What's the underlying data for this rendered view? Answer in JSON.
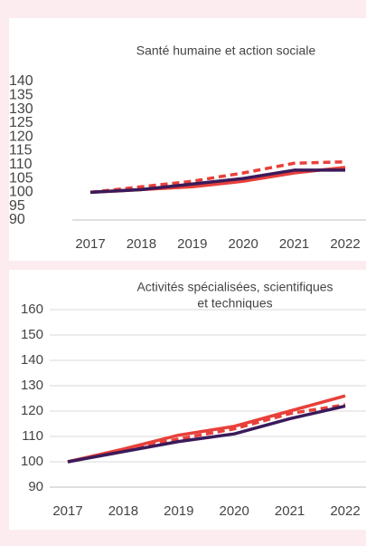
{
  "chart_data": [
    {
      "type": "line",
      "title": "Santé humaine et action sociale",
      "categories": [
        "2017",
        "2018",
        "2019",
        "2020",
        "2021",
        "2022"
      ],
      "series": [
        {
          "color": "#e8403a",
          "dash": false,
          "values": [
            100,
            101,
            102,
            104,
            107,
            109
          ]
        },
        {
          "color": "#e8403a",
          "dash": true,
          "values": [
            100,
            102,
            104,
            107,
            110.5,
            111
          ]
        },
        {
          "color": "#3b1a5a",
          "dash": false,
          "values": [
            100,
            101,
            103,
            105,
            108,
            108
          ]
        }
      ],
      "ylim": [
        90,
        140
      ],
      "yticks": [
        90,
        95,
        100,
        105,
        110,
        115,
        120,
        125,
        130,
        135,
        140
      ],
      "grid": false
    },
    {
      "type": "line",
      "title": [
        "Activités spécialisées, scientifiques",
        "et techniques"
      ],
      "categories": [
        "2017",
        "2018",
        "2019",
        "2020",
        "2021",
        "2022"
      ],
      "series": [
        {
          "color": "#e8403a",
          "dash": false,
          "values": [
            100,
            105,
            110.5,
            114,
            120,
            126
          ]
        },
        {
          "color": "#e8403a",
          "dash": true,
          "values": [
            100,
            104.5,
            109,
            113,
            119,
            122.5
          ]
        },
        {
          "color": "#3b1a5a",
          "dash": false,
          "values": [
            100,
            104,
            108,
            111,
            117,
            122
          ]
        }
      ],
      "ylim": [
        90,
        160
      ],
      "yticks": [
        90,
        100,
        110,
        120,
        130,
        140,
        150,
        160
      ],
      "grid": true
    }
  ]
}
